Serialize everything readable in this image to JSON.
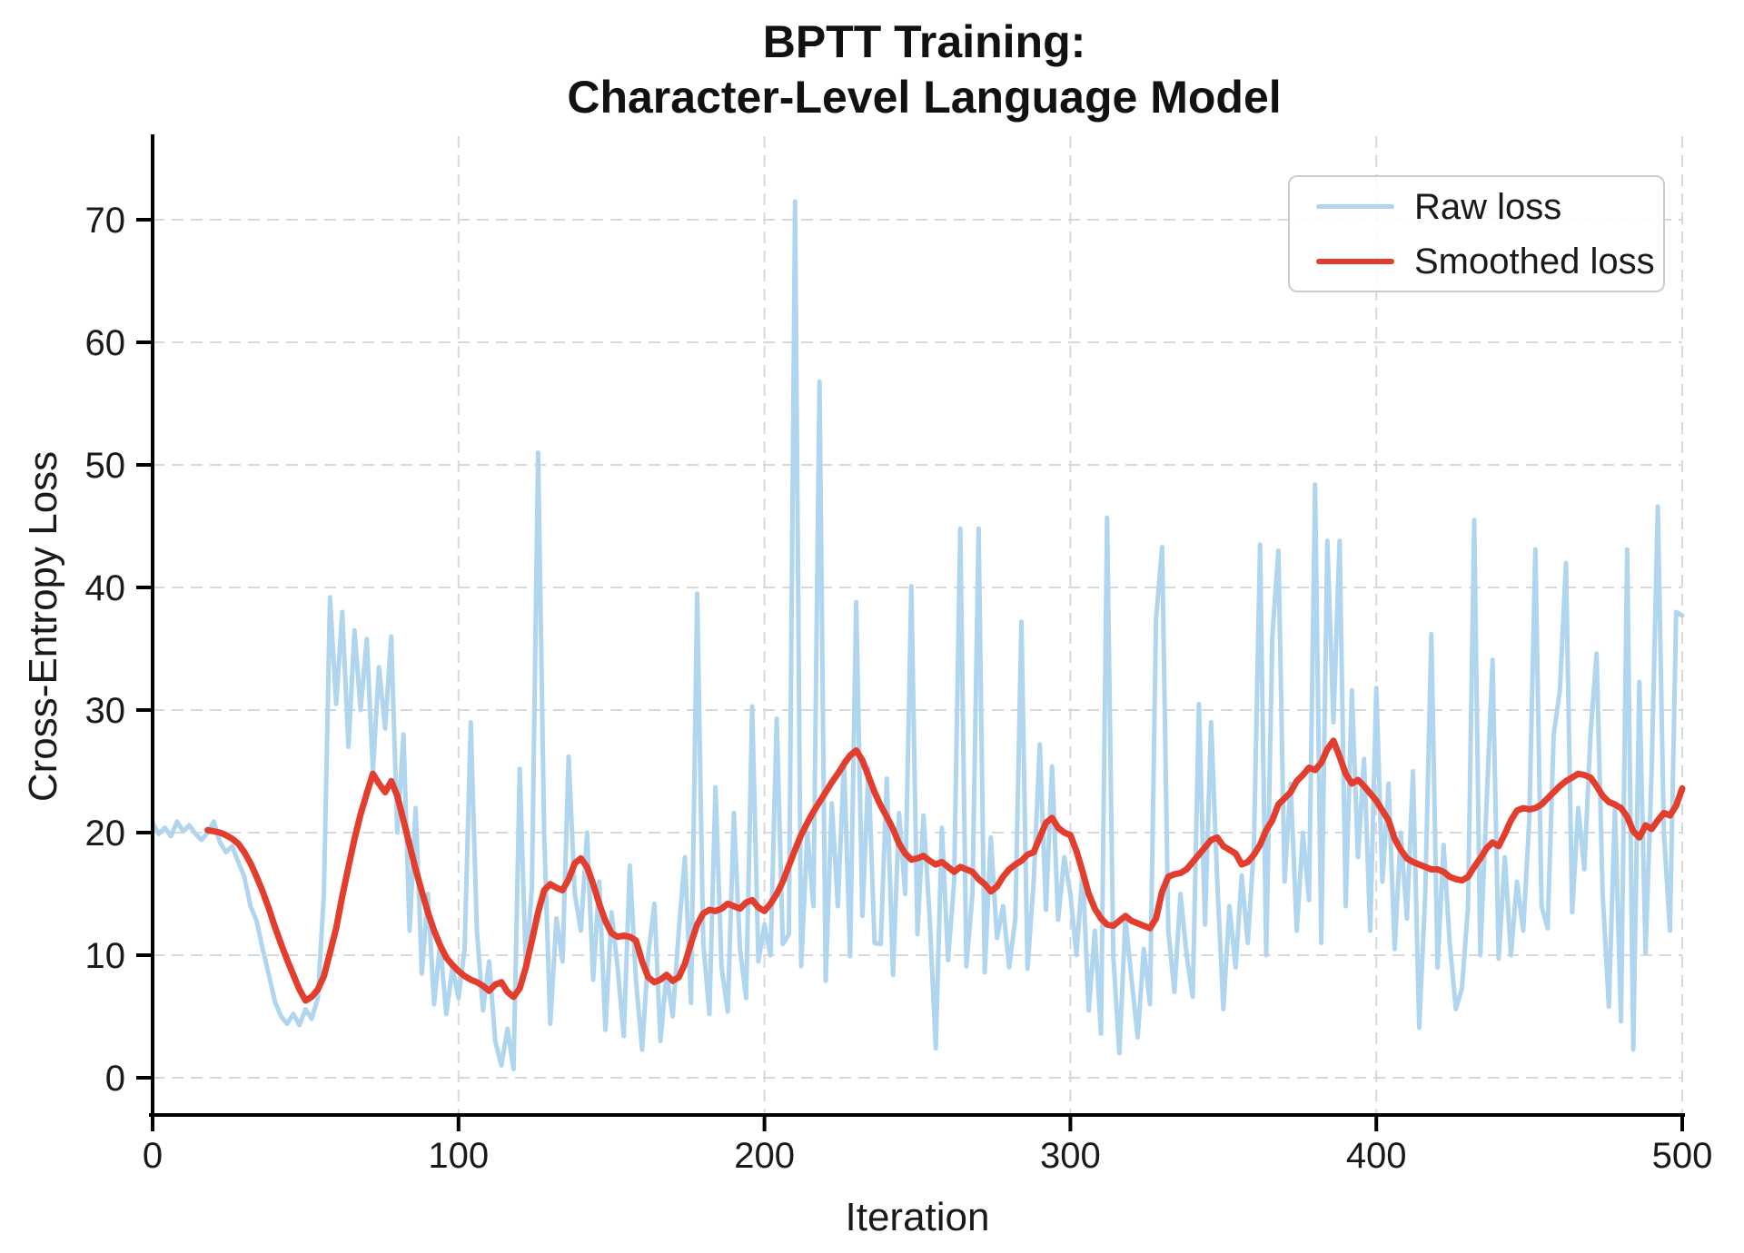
{
  "title": {
    "line1": "BPTT Training:",
    "line2": "Character-Level Language Model"
  },
  "axes": {
    "x_label": "Iteration",
    "y_label": "Cross-Entropy Loss",
    "x_ticks": [
      0,
      100,
      200,
      300,
      400,
      500
    ],
    "y_ticks": [
      0,
      10,
      20,
      30,
      40,
      50,
      60,
      70
    ],
    "grid": true
  },
  "legend": {
    "position": "upper right",
    "entries": [
      "Raw loss",
      "Smoothed loss"
    ]
  },
  "colors": {
    "raw_line": "#b0d5ee",
    "smoothed_line": "#e23d2d",
    "grid_line": "#d8d8d8",
    "spine": "#000000",
    "text": "#1a1a1a",
    "legend_border": "#cccccc",
    "background": "#ffffff"
  },
  "chart_data": {
    "type": "line",
    "title": "BPTT Training: Character-Level Language Model",
    "xlabel": "Iteration",
    "ylabel": "Cross-Entropy Loss",
    "xlim": [
      0,
      500
    ],
    "ylim": [
      -3,
      76.8
    ],
    "grid": true,
    "legend_position": "upper right",
    "series": [
      {
        "name": "Raw loss",
        "color": "#b0d5ee",
        "x_start": 0,
        "x_step": 2,
        "y": [
          20.8,
          19.9,
          20.4,
          19.7,
          20.9,
          20.1,
          20.6,
          19.9,
          19.4,
          20.0,
          20.9,
          19.2,
          18.4,
          18.9,
          17.6,
          16.4,
          14.0,
          12.8,
          10.5,
          8.4,
          6.2,
          5.0,
          4.4,
          5.2,
          4.3,
          5.6,
          4.8,
          6.5,
          15.0,
          39.2,
          30.5,
          38.0,
          27.0,
          36.5,
          30.0,
          35.8,
          25.0,
          33.5,
          28.5,
          36.0,
          20.0,
          28.0,
          12.0,
          22.0,
          8.5,
          15.0,
          6.0,
          11.0,
          5.2,
          9.0,
          6.5,
          10.5,
          29.0,
          12.0,
          5.5,
          9.5,
          3.0,
          1.0,
          4.0,
          0.7,
          25.2,
          9.0,
          15.5,
          51.0,
          19.8,
          4.4,
          13.0,
          9.5,
          26.2,
          15.0,
          12.0,
          20.0,
          8.0,
          16.0,
          3.9,
          13.5,
          9.0,
          3.4,
          17.3,
          8.0,
          2.3,
          10.0,
          14.2,
          3.0,
          8.5,
          5.0,
          12.0,
          18.0,
          6.1,
          39.5,
          11.0,
          5.2,
          23.7,
          9.0,
          5.4,
          21.6,
          10.5,
          6.5,
          30.3,
          9.5,
          12.5,
          10.0,
          29.3,
          10.9,
          11.7,
          71.5,
          9.1,
          20.0,
          14.0,
          56.8,
          7.9,
          22.4,
          14.0,
          25.9,
          9.9,
          38.8,
          13.2,
          25.2,
          11.0,
          10.9,
          24.4,
          8.4,
          21.6,
          15.0,
          40.1,
          11.7,
          21.4,
          13.0,
          2.4,
          20.4,
          9.6,
          16.0,
          44.8,
          9.1,
          15.0,
          44.8,
          8.6,
          19.6,
          11.4,
          14.0,
          9.0,
          13.0,
          37.2,
          8.9,
          16.0,
          27.2,
          13.7,
          25.4,
          12.9,
          18.0,
          15.0,
          10.0,
          17.0,
          5.5,
          12.0,
          3.6,
          45.7,
          10.0,
          2.0,
          13.0,
          8.0,
          3.3,
          10.5,
          6.0,
          37.4,
          43.3,
          12.0,
          7.0,
          15.0,
          10.0,
          6.6,
          30.5,
          12.5,
          29.0,
          16.0,
          5.6,
          14.0,
          9.0,
          16.5,
          11.0,
          19.0,
          43.5,
          10.0,
          36.0,
          43.0,
          16.0,
          24.0,
          12.0,
          20.0,
          14.5,
          48.4,
          11.0,
          43.8,
          29.0,
          43.8,
          14.0,
          31.6,
          18.0,
          26.0,
          12.0,
          31.8,
          16.0,
          24.0,
          10.5,
          20.0,
          13.0,
          25.0,
          4.1,
          15.0,
          36.2,
          9.0,
          19.0,
          11.0,
          5.6,
          7.3,
          14.0,
          45.5,
          10.0,
          22.0,
          34.1,
          9.7,
          18.0,
          10.0,
          16.0,
          12.0,
          21.0,
          43.1,
          14.0,
          12.2,
          28.0,
          31.6,
          42.0,
          13.5,
          22.0,
          17.0,
          28.0,
          34.6,
          15.0,
          5.8,
          22.0,
          4.6,
          43.1,
          2.3,
          32.3,
          10.2,
          25.0,
          46.6,
          20.0,
          12.0,
          38.0,
          37.7
        ]
      },
      {
        "name": "Smoothed loss",
        "color": "#e23d2d",
        "x_start": 18,
        "x_step": 2,
        "y": [
          20.2,
          20.1,
          20.0,
          19.8,
          19.5,
          19.1,
          18.4,
          17.5,
          16.4,
          15.2,
          13.8,
          12.3,
          10.9,
          9.6,
          8.4,
          7.2,
          6.3,
          6.6,
          7.2,
          8.3,
          10.2,
          12.2,
          14.8,
          17.2,
          19.5,
          21.5,
          23.2,
          24.8,
          24.0,
          23.3,
          24.2,
          23.0,
          21.0,
          19.0,
          17.0,
          15.2,
          13.5,
          12.0,
          10.8,
          9.8,
          9.2,
          8.7,
          8.3,
          8.0,
          7.8,
          7.5,
          7.1,
          7.6,
          7.8,
          7.0,
          6.6,
          7.3,
          9.0,
          11.2,
          13.5,
          15.3,
          15.8,
          15.5,
          15.3,
          16.2,
          17.5,
          17.9,
          17.2,
          15.8,
          14.2,
          12.8,
          11.8,
          11.5,
          11.6,
          11.5,
          11.2,
          9.5,
          8.2,
          7.8,
          8.0,
          8.4,
          7.9,
          8.2,
          9.3,
          11.0,
          12.5,
          13.4,
          13.7,
          13.6,
          13.8,
          14.2,
          14.0,
          13.8,
          14.3,
          14.5,
          13.9,
          13.6,
          14.2,
          15.0,
          16.0,
          17.3,
          18.6,
          19.8,
          20.8,
          21.7,
          22.5,
          23.3,
          24.1,
          24.8,
          25.6,
          26.3,
          26.7,
          25.9,
          24.6,
          23.3,
          22.2,
          21.3,
          20.3,
          19.1,
          18.3,
          17.8,
          17.9,
          18.1,
          17.7,
          17.4,
          17.6,
          17.2,
          16.8,
          17.2,
          17.0,
          16.8,
          16.2,
          15.8,
          15.2,
          15.6,
          16.4,
          17.0,
          17.4,
          17.7,
          18.2,
          18.4,
          19.6,
          20.8,
          21.2,
          20.4,
          20.0,
          19.8,
          18.5,
          16.8,
          15.0,
          13.8,
          13.0,
          12.5,
          12.4,
          12.8,
          13.2,
          12.8,
          12.6,
          12.4,
          12.2,
          13.0,
          15.2,
          16.4,
          16.6,
          16.7,
          17.0,
          17.6,
          18.2,
          18.8,
          19.4,
          19.6,
          18.9,
          18.6,
          18.3,
          17.4,
          17.6,
          18.2,
          19.0,
          20.2,
          21.0,
          22.3,
          22.8,
          23.3,
          24.2,
          24.7,
          25.3,
          25.1,
          25.7,
          26.8,
          27.5,
          26.2,
          24.8,
          24.0,
          24.3,
          23.8,
          23.2,
          22.6,
          21.8,
          21.0,
          19.5,
          18.6,
          17.9,
          17.6,
          17.4,
          17.2,
          17.0,
          17.0,
          16.8,
          16.4,
          16.2,
          16.1,
          16.4,
          17.2,
          17.9,
          18.7,
          19.2,
          18.9,
          19.9,
          21.0,
          21.8,
          22.0,
          21.9,
          22.0,
          22.3,
          22.8,
          23.3,
          23.8,
          24.2,
          24.5,
          24.8,
          24.7,
          24.5,
          23.8,
          23.0,
          22.5,
          22.3,
          22.0,
          21.3,
          20.1,
          19.6,
          20.6,
          20.3,
          21.0,
          21.6,
          21.4,
          22.2,
          23.6
        ]
      }
    ]
  }
}
